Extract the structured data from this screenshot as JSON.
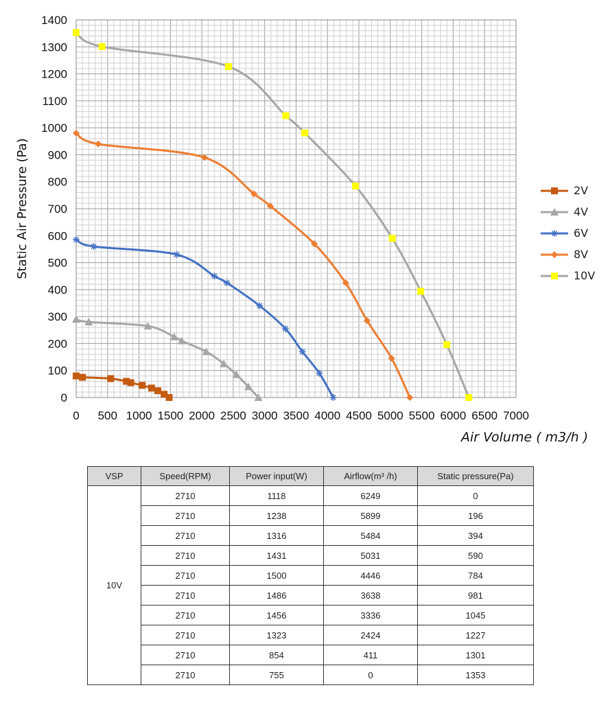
{
  "chart_data": {
    "type": "line",
    "ylabel": "Static Air Pressure  (Pa)",
    "xlabel": "Air Volume ( m3/h )",
    "xlim": [
      0,
      7000
    ],
    "ylim": [
      0,
      1400
    ],
    "x_ticks": [
      "0",
      "500",
      "1000",
      "1500",
      "2000",
      "2500",
      "3000",
      "3500",
      "4000",
      "4500",
      "5000",
      "5500",
      "6000",
      "6500",
      "7000"
    ],
    "y_ticks": [
      "0",
      "100",
      "200",
      "300",
      "400",
      "500",
      "600",
      "700",
      "800",
      "900",
      "1000",
      "1100",
      "1200",
      "1300",
      "1400"
    ],
    "grid": true,
    "legend_position": "right",
    "series": [
      {
        "name": "2V",
        "color": "#c55a11",
        "marker": "square",
        "x": [
          0,
          100,
          550,
          800,
          870,
          1050,
          1200,
          1300,
          1400,
          1480
        ],
        "y": [
          80,
          75,
          70,
          60,
          55,
          45,
          35,
          25,
          12,
          0
        ]
      },
      {
        "name": "4V",
        "color": "#a6a6a6",
        "marker": "triangle",
        "x": [
          0,
          200,
          1140,
          1560,
          1680,
          2070,
          2350,
          2550,
          2740,
          2900
        ],
        "y": [
          290,
          280,
          265,
          225,
          210,
          170,
          125,
          85,
          40,
          0
        ]
      },
      {
        "name": "6V",
        "color": "#4472c4",
        "marker": "star",
        "x": [
          0,
          280,
          1600,
          2200,
          2400,
          2920,
          3330,
          3600,
          3870,
          4090
        ],
        "y": [
          585,
          560,
          530,
          450,
          425,
          340,
          255,
          170,
          90,
          0
        ]
      },
      {
        "name": "8V",
        "color": "#ed7d31",
        "marker": "diamond",
        "x": [
          0,
          350,
          2040,
          2830,
          3090,
          3790,
          4290,
          4630,
          5020,
          5310
        ],
        "y": [
          980,
          940,
          890,
          755,
          710,
          570,
          425,
          285,
          145,
          0
        ]
      },
      {
        "name": "10V",
        "color": "#a6a6a6",
        "marker": "square",
        "marker_color": "#ffff00",
        "x": [
          0,
          411,
          2424,
          3336,
          3638,
          4446,
          5031,
          5484,
          5899,
          6249
        ],
        "y": [
          1353,
          1301,
          1227,
          1045,
          981,
          784,
          590,
          394,
          196,
          0
        ]
      }
    ]
  },
  "table": {
    "headers": [
      "VSP",
      "Speed(RPM)",
      "Power input(W)",
      "Airflow(m³ /h)",
      "Static pressure(Pa)"
    ],
    "vsp": "10V",
    "rows": [
      [
        "2710",
        "1118",
        "6249",
        "0"
      ],
      [
        "2710",
        "1238",
        "5899",
        "196"
      ],
      [
        "2710",
        "1316",
        "5484",
        "394"
      ],
      [
        "2710",
        "1431",
        "5031",
        "590"
      ],
      [
        "2710",
        "1500",
        "4446",
        "784"
      ],
      [
        "2710",
        "1486",
        "3638",
        "981"
      ],
      [
        "2710",
        "1456",
        "3336",
        "1045"
      ],
      [
        "2710",
        "1323",
        "2424",
        "1227"
      ],
      [
        "2710",
        "854",
        "411",
        "1301"
      ],
      [
        "2710",
        "755",
        "0",
        "1353"
      ]
    ]
  }
}
